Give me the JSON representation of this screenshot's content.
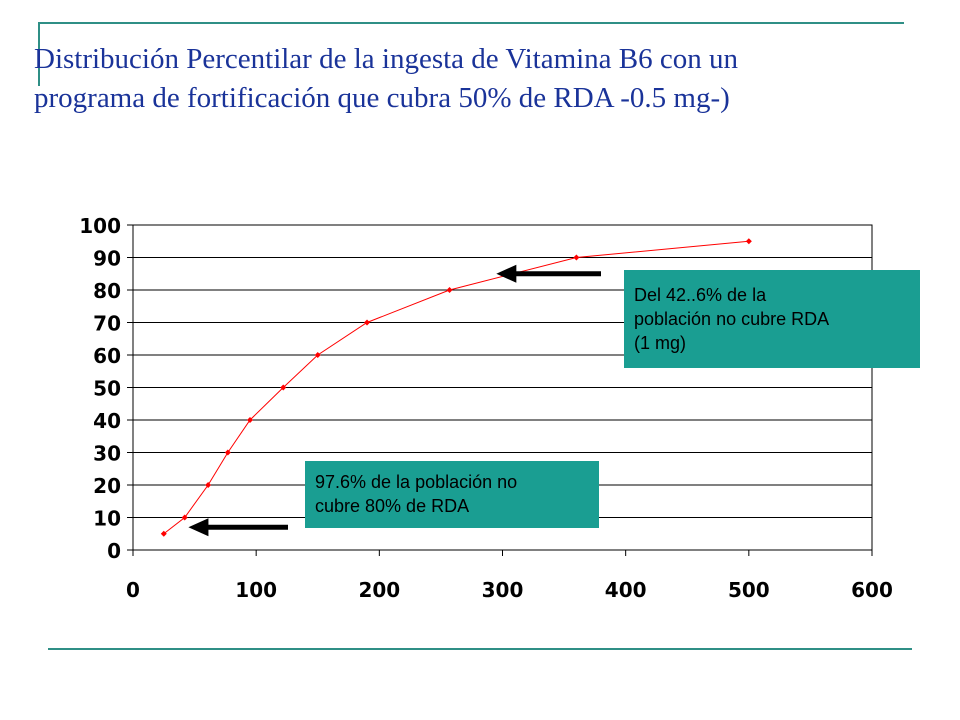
{
  "title": {
    "line1": "Distribución Percentilar de la ingesta de  Vitamina B6 con un",
    "line2": "programa de fortificación que cubra 50% de RDA -0.5 mg-)"
  },
  "annotations": [
    {
      "id": "callout-1",
      "lines": [
        "Del 42..6% de la",
        "población no cubre RDA",
        "(1 mg)"
      ],
      "arrow_to": {
        "x": 295,
        "y": 85
      }
    },
    {
      "id": "callout-2",
      "lines": [
        "97.6% de la población no",
        "cubre 80% de RDA"
      ],
      "arrow_to": {
        "x": 45,
        "y": 7
      }
    }
  ],
  "colors": {
    "title": "#1a3399",
    "accent_lines": "#2f8f86",
    "callout_bg": "#1a9e92",
    "series": "#ff0000",
    "grid": "#000000"
  },
  "chart_data": {
    "type": "line",
    "title": "",
    "xlabel": "",
    "ylabel": "",
    "xlim": [
      0,
      600
    ],
    "ylim": [
      0,
      100
    ],
    "xticks": [
      0,
      100,
      200,
      300,
      400,
      500,
      600
    ],
    "yticks": [
      0,
      10,
      20,
      30,
      40,
      50,
      60,
      70,
      80,
      90,
      100
    ],
    "grid": "horizontal",
    "legend": "none",
    "series": [
      {
        "x": [
          25,
          42,
          61,
          77,
          95,
          122,
          150,
          190,
          257,
          360,
          500
        ],
        "y": [
          5,
          10,
          20,
          30,
          40,
          50,
          60,
          70,
          80,
          90,
          95
        ]
      }
    ]
  }
}
